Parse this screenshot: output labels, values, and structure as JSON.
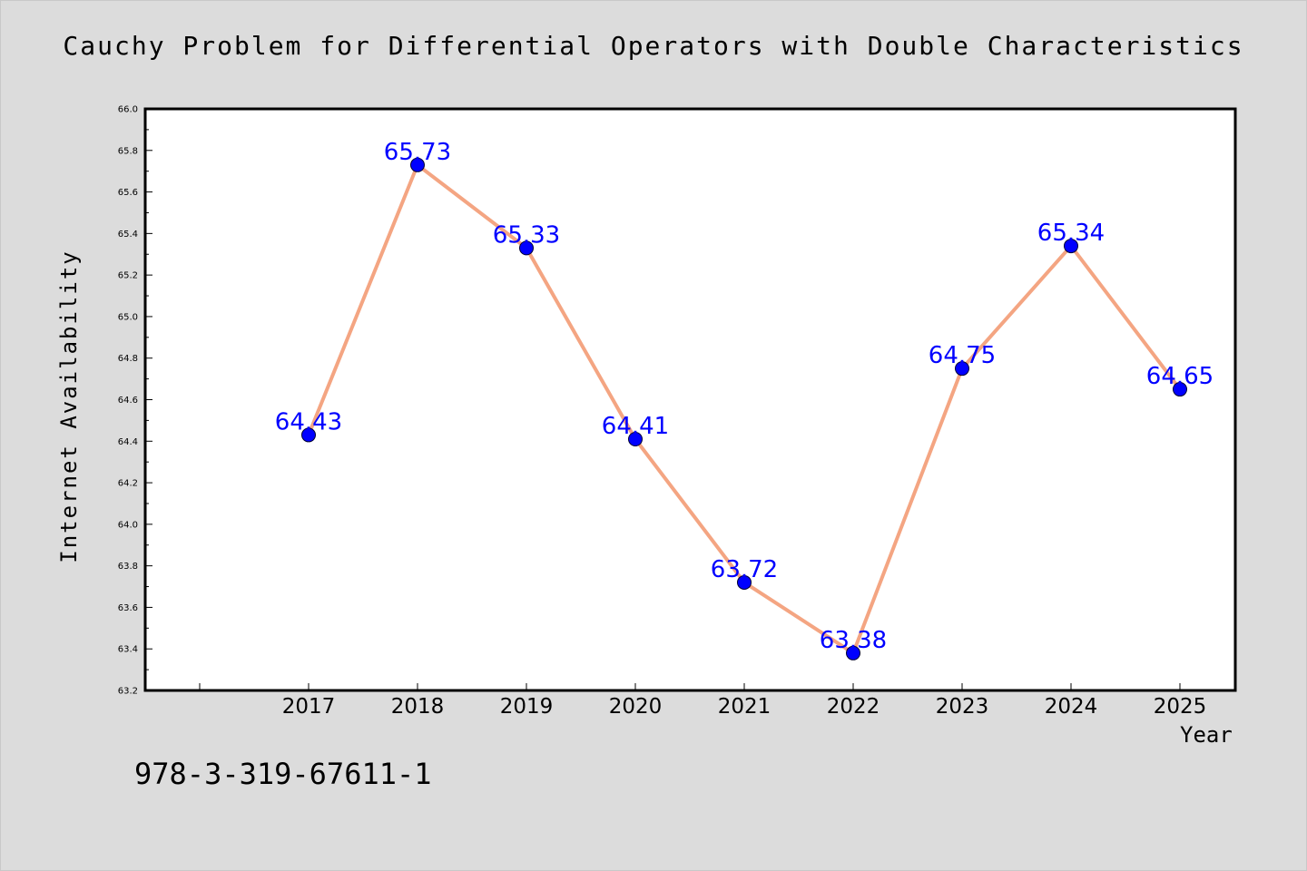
{
  "chart_data": {
    "type": "line",
    "title": "Cauchy Problem for Differential Operators with Double Characteristics",
    "xlabel": "Year",
    "ylabel": "Internet Availability",
    "categories": [
      "2017",
      "2018",
      "2019",
      "2020",
      "2021",
      "2022",
      "2023",
      "2024",
      "2025"
    ],
    "series": [
      {
        "values": [
          64.43,
          65.73,
          65.33,
          64.41,
          63.72,
          63.38,
          64.75,
          65.34,
          64.65
        ]
      }
    ],
    "data_labels": [
      "64.43",
      "65.73",
      "65.33",
      "64.41",
      "63.72",
      "63.38",
      "64.75",
      "65.34",
      "64.65"
    ],
    "ylim": [
      63.2,
      66.0
    ],
    "y_ticks": [
      "63.2",
      "63.4",
      "63.6",
      "63.8",
      "64.0",
      "64.2",
      "64.4",
      "64.6",
      "64.8",
      "65.0",
      "65.2",
      "65.4",
      "65.6",
      "65.8",
      "66.0"
    ],
    "grid": false,
    "legend": "none",
    "colors": {
      "line": "#f4a582",
      "marker": "#0000ff",
      "data_label": "#0000ff",
      "background": "#dcdcdc",
      "plot_background": "#ffffff"
    }
  },
  "annotation": "978-3-319-67611-1"
}
